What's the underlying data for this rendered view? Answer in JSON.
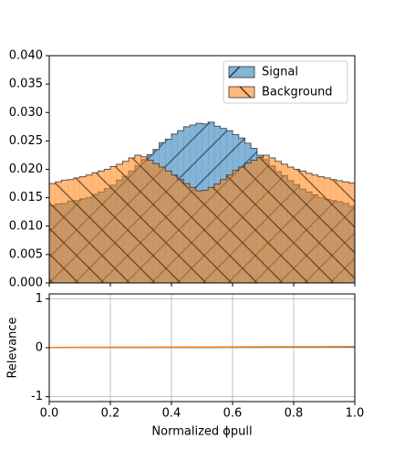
{
  "chart_data": [
    {
      "type": "histogram",
      "bins": [
        0,
        0.02,
        0.04,
        0.06,
        0.08,
        0.1,
        0.12,
        0.14,
        0.16,
        0.18,
        0.2,
        0.22,
        0.24,
        0.26,
        0.28,
        0.3,
        0.32,
        0.34,
        0.36,
        0.38,
        0.4,
        0.42,
        0.44,
        0.46,
        0.48,
        0.5,
        0.52,
        0.54,
        0.56,
        0.58,
        0.6,
        0.62,
        0.64,
        0.66,
        0.68,
        0.7,
        0.72,
        0.74,
        0.76,
        0.78,
        0.8,
        0.82,
        0.84,
        0.86,
        0.88,
        0.9,
        0.92,
        0.94,
        0.96,
        0.98,
        1
      ],
      "series": [
        {
          "name": "Signal",
          "color": "#1f77b4",
          "hatch": "/",
          "values": [
            0.0136,
            0.0139,
            0.014,
            0.0144,
            0.0145,
            0.0148,
            0.015,
            0.0156,
            0.016,
            0.0166,
            0.0172,
            0.0181,
            0.0188,
            0.0197,
            0.0206,
            0.0217,
            0.0226,
            0.0235,
            0.0247,
            0.0253,
            0.0262,
            0.0268,
            0.0275,
            0.0278,
            0.0281,
            0.028,
            0.0283,
            0.0276,
            0.0272,
            0.0268,
            0.0261,
            0.0255,
            0.0246,
            0.0237,
            0.0225,
            0.0217,
            0.0206,
            0.0196,
            0.0189,
            0.018,
            0.0173,
            0.0165,
            0.016,
            0.0155,
            0.015,
            0.0147,
            0.0145,
            0.0143,
            0.014,
            0.0135
          ]
        },
        {
          "name": "Background",
          "color": "#ff7f0e",
          "hatch": "\\",
          "values": [
            0.0175,
            0.0178,
            0.0181,
            0.0182,
            0.0185,
            0.0187,
            0.019,
            0.0194,
            0.0197,
            0.02,
            0.0205,
            0.0209,
            0.0214,
            0.022,
            0.0225,
            0.0222,
            0.0216,
            0.021,
            0.0204,
            0.0197,
            0.019,
            0.0182,
            0.0175,
            0.0168,
            0.0162,
            0.0163,
            0.0168,
            0.0174,
            0.0182,
            0.019,
            0.0198,
            0.0204,
            0.0211,
            0.0216,
            0.0221,
            0.0225,
            0.022,
            0.0214,
            0.0209,
            0.0204,
            0.02,
            0.0197,
            0.0193,
            0.019,
            0.0187,
            0.0185,
            0.0182,
            0.018,
            0.0178,
            0.0176
          ]
        }
      ],
      "xlim": [
        0,
        1
      ],
      "xticks": [
        0,
        0.2,
        0.4,
        0.6,
        0.8,
        1
      ],
      "ylim": [
        0,
        0.04
      ],
      "yticks": [
        {
          "value": 0,
          "label": "0.000"
        },
        {
          "value": 0.005,
          "label": "0.005"
        },
        {
          "value": 0.01,
          "label": "0.010"
        },
        {
          "value": 0.015,
          "label": "0.015"
        },
        {
          "value": 0.02,
          "label": "0.020"
        },
        {
          "value": 0.025,
          "label": "0.025"
        },
        {
          "value": 0.03,
          "label": "0.030"
        },
        {
          "value": 0.035,
          "label": "0.035"
        },
        {
          "value": 0.04,
          "label": "0.040"
        }
      ],
      "legend": "upper right",
      "grid": false
    },
    {
      "type": "line",
      "x": [
        0,
        0.1,
        0.2,
        0.3,
        0.4,
        0.5,
        0.6,
        0.7,
        0.8,
        0.9,
        1
      ],
      "series": [
        {
          "color": "#1f77b4",
          "values": [
            0.005,
            0.006,
            0.007,
            0.008,
            0.009,
            0.01,
            0.011,
            0.012,
            0.013,
            0.014,
            0.015
          ]
        },
        {
          "color": "#ff7f0e",
          "values": [
            0.004,
            0.006,
            0.008,
            0.01,
            0.012,
            0.014,
            0.016,
            0.018,
            0.02,
            0.022,
            0.024
          ]
        }
      ],
      "xlim": [
        0,
        1
      ],
      "xticks": [
        {
          "value": 0,
          "label": "0.0"
        },
        {
          "value": 0.2,
          "label": "0.2"
        },
        {
          "value": 0.4,
          "label": "0.4"
        },
        {
          "value": 0.6,
          "label": "0.6"
        },
        {
          "value": 0.8,
          "label": "0.8"
        },
        {
          "value": 1,
          "label": "1.0"
        }
      ],
      "ylim": [
        -1.1,
        1.1
      ],
      "yticks": [
        -1,
        0,
        1
      ],
      "xlabel": "Normalized ϕpull",
      "ylabel": "Relevance",
      "grid": true
    }
  ]
}
